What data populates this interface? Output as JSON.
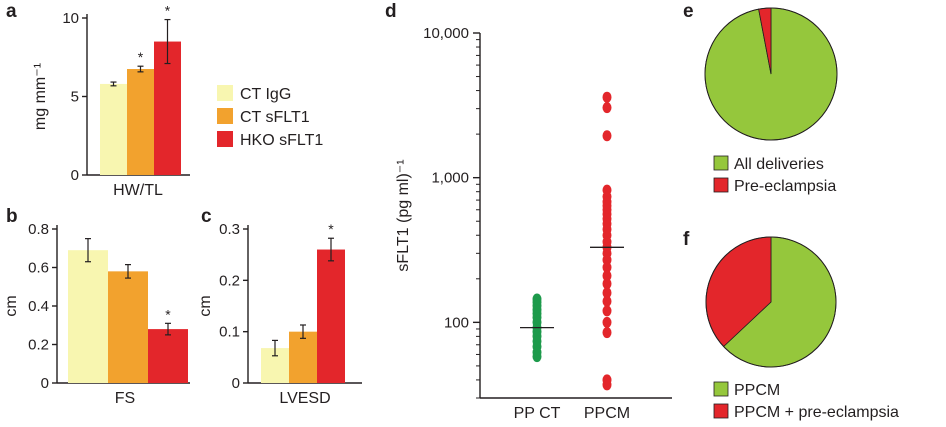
{
  "colors": {
    "ct_igg": "#f8f6b0",
    "ct_sflt1": "#f2a22e",
    "hko_sflt1": "#e3262b",
    "pp_ct_dots": "#1d9a4b",
    "ppcm_dots": "#e3262b",
    "pie_green": "#95c73c",
    "pie_red": "#e3262b",
    "axis": "#231f20"
  },
  "chart_data": [
    {
      "panel": "a",
      "type": "bar",
      "categories": [
        "HW/TL"
      ],
      "series": [
        {
          "name": "CT IgG",
          "values": [
            5.8
          ],
          "error": [
            0.12
          ],
          "star": false
        },
        {
          "name": "CT sFLT1",
          "values": [
            6.75
          ],
          "error": [
            0.18
          ],
          "star": true
        },
        {
          "name": "HKO sFLT1",
          "values": [
            8.5
          ],
          "error": [
            1.4
          ],
          "star": true
        }
      ],
      "ylabel": "mg mm⁻¹",
      "xlabel": "HW/TL",
      "ylim": [
        0,
        10
      ],
      "yticks": [
        "0",
        "5",
        "10"
      ],
      "legend": [
        "CT IgG",
        "CT sFLT1",
        "HKO sFLT1"
      ]
    },
    {
      "panel": "b",
      "type": "bar",
      "categories": [
        "FS"
      ],
      "series": [
        {
          "name": "CT IgG",
          "values": [
            0.69
          ],
          "error": [
            0.06
          ],
          "star": false
        },
        {
          "name": "CT sFLT1",
          "values": [
            0.58
          ],
          "error": [
            0.035
          ],
          "star": false
        },
        {
          "name": "HKO sFLT1",
          "values": [
            0.28
          ],
          "error": [
            0.03
          ],
          "star": true
        }
      ],
      "ylabel": "cm",
      "xlabel": "FS",
      "ylim": [
        0,
        0.8
      ],
      "yticks": [
        "0",
        "0.2",
        "0.4",
        "0.6",
        "0.8"
      ]
    },
    {
      "panel": "c",
      "type": "bar",
      "categories": [
        "LVESD"
      ],
      "series": [
        {
          "name": "CT IgG",
          "values": [
            0.068
          ],
          "error": [
            0.015
          ],
          "star": false
        },
        {
          "name": "CT sFLT1",
          "values": [
            0.1
          ],
          "error": [
            0.013
          ],
          "star": false
        },
        {
          "name": "HKO sFLT1",
          "values": [
            0.26
          ],
          "error": [
            0.022
          ],
          "star": true
        }
      ],
      "ylabel": "cm",
      "xlabel": "LVESD",
      "ylim": [
        0,
        0.3
      ],
      "yticks": [
        "0",
        "0.1",
        "0.2",
        "0.3"
      ]
    },
    {
      "panel": "d",
      "type": "scatter",
      "y_scale": "log",
      "ylim": [
        30,
        10000
      ],
      "ylabel": "sFLT1 (pg ml)⁻¹",
      "yticks": [
        {
          "value": 100,
          "label": "100"
        },
        {
          "value": 1000,
          "label": "1,000"
        },
        {
          "value": 10000,
          "label": "10,000"
        }
      ],
      "categories": [
        "PP CT",
        "PPCM"
      ],
      "series": [
        {
          "name": "PP CT",
          "values": [
            145,
            138,
            130,
            122,
            115,
            108,
            100,
            92,
            86,
            80,
            74,
            68,
            62,
            58
          ],
          "median": 92
        },
        {
          "name": "PPCM",
          "values": [
            3600,
            3050,
            1950,
            820,
            740,
            680,
            640,
            600,
            560,
            520,
            480,
            440,
            400,
            360,
            330,
            300,
            270,
            240,
            210,
            185,
            160,
            140,
            120,
            100,
            85,
            40,
            37
          ],
          "median": 330
        }
      ]
    },
    {
      "panel": "e",
      "type": "pie",
      "slices": [
        {
          "label": "All deliveries",
          "value": 97
        },
        {
          "label": "Pre-eclampsia",
          "value": 3
        }
      ]
    },
    {
      "panel": "f",
      "type": "pie",
      "slices": [
        {
          "label": "PPCM",
          "value": 63
        },
        {
          "label": "PPCM + pre-eclampsia",
          "value": 37
        }
      ]
    }
  ],
  "panel_labels": {
    "a": "a",
    "b": "b",
    "c": "c",
    "d": "d",
    "e": "e",
    "f": "f"
  },
  "star_symbol": "*"
}
